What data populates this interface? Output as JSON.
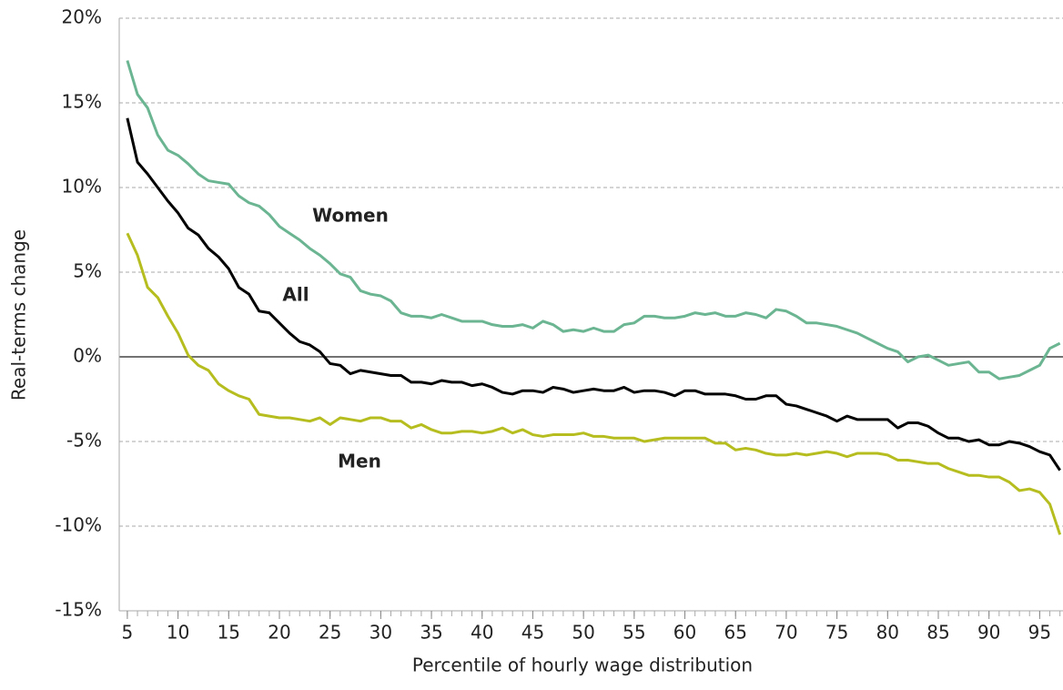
{
  "chart_data": {
    "type": "line",
    "x_label": "Percentile of hourly wage distribution",
    "y_label": "Real-terms change",
    "x": [
      5,
      6,
      7,
      8,
      9,
      10,
      11,
      12,
      13,
      14,
      15,
      16,
      17,
      18,
      19,
      20,
      21,
      22,
      23,
      24,
      25,
      26,
      27,
      28,
      29,
      30,
      31,
      32,
      33,
      34,
      35,
      36,
      37,
      38,
      39,
      40,
      41,
      42,
      43,
      44,
      45,
      46,
      47,
      48,
      49,
      50,
      51,
      52,
      53,
      54,
      55,
      56,
      57,
      58,
      59,
      60,
      61,
      62,
      63,
      64,
      65,
      66,
      67,
      68,
      69,
      70,
      71,
      72,
      73,
      74,
      75,
      76,
      77,
      78,
      79,
      80,
      81,
      82,
      83,
      84,
      85,
      86,
      87,
      88,
      89,
      90,
      91,
      92,
      93,
      94,
      95,
      96,
      97
    ],
    "series": [
      {
        "name": "Women",
        "color": "#6bb592",
        "values": [
          17.5,
          15.5,
          14.7,
          13.1,
          12.2,
          11.9,
          11.4,
          10.8,
          10.4,
          10.3,
          10.2,
          9.5,
          9.1,
          8.9,
          8.4,
          7.7,
          7.3,
          6.9,
          6.4,
          6.0,
          5.5,
          4.9,
          4.7,
          3.9,
          3.7,
          3.6,
          3.3,
          2.6,
          2.4,
          2.4,
          2.3,
          2.5,
          2.3,
          2.1,
          2.1,
          2.1,
          1.9,
          1.8,
          1.8,
          1.9,
          1.7,
          2.1,
          1.9,
          1.5,
          1.6,
          1.5,
          1.7,
          1.5,
          1.5,
          1.9,
          2.0,
          2.4,
          2.4,
          2.3,
          2.3,
          2.4,
          2.6,
          2.5,
          2.6,
          2.4,
          2.4,
          2.6,
          2.5,
          2.3,
          2.8,
          2.7,
          2.4,
          2.0,
          2.0,
          1.9,
          1.8,
          1.6,
          1.4,
          1.1,
          0.8,
          0.5,
          0.3,
          -0.3,
          0.0,
          0.1,
          -0.2,
          -0.5,
          -0.4,
          -0.3,
          -0.9,
          -0.9,
          -1.3,
          -1.2,
          -1.1,
          -0.8,
          -0.5,
          0.5,
          0.8
        ]
      },
      {
        "name": "All",
        "color": "#000000",
        "values": [
          14.1,
          11.5,
          10.8,
          10.0,
          9.2,
          8.5,
          7.6,
          7.2,
          6.4,
          5.9,
          5.2,
          4.1,
          3.7,
          2.7,
          2.6,
          2.0,
          1.4,
          0.9,
          0.7,
          0.3,
          -0.4,
          -0.5,
          -1.0,
          -0.8,
          -0.9,
          -1.0,
          -1.1,
          -1.1,
          -1.5,
          -1.5,
          -1.6,
          -1.4,
          -1.5,
          -1.5,
          -1.7,
          -1.6,
          -1.8,
          -2.1,
          -2.2,
          -2.0,
          -2.0,
          -2.1,
          -1.8,
          -1.9,
          -2.1,
          -2.0,
          -1.9,
          -2.0,
          -2.0,
          -1.8,
          -2.1,
          -2.0,
          -2.0,
          -2.1,
          -2.3,
          -2.0,
          -2.0,
          -2.2,
          -2.2,
          -2.2,
          -2.3,
          -2.5,
          -2.5,
          -2.3,
          -2.3,
          -2.8,
          -2.9,
          -3.1,
          -3.3,
          -3.5,
          -3.8,
          -3.5,
          -3.7,
          -3.7,
          -3.7,
          -3.7,
          -4.2,
          -3.9,
          -3.9,
          -4.1,
          -4.5,
          -4.8,
          -4.8,
          -5.0,
          -4.9,
          -5.2,
          -5.2,
          -5.0,
          -5.1,
          -5.3,
          -5.6,
          -5.8,
          -6.7
        ]
      },
      {
        "name": "Men",
        "color": "#b5bd1f",
        "values": [
          7.3,
          6.0,
          4.1,
          3.5,
          2.4,
          1.4,
          0.1,
          -0.5,
          -0.8,
          -1.6,
          -2.0,
          -2.3,
          -2.5,
          -3.4,
          -3.5,
          -3.6,
          -3.6,
          -3.7,
          -3.8,
          -3.6,
          -4.0,
          -3.6,
          -3.7,
          -3.8,
          -3.6,
          -3.6,
          -3.8,
          -3.8,
          -4.2,
          -4.0,
          -4.3,
          -4.5,
          -4.5,
          -4.4,
          -4.4,
          -4.5,
          -4.4,
          -4.2,
          -4.5,
          -4.3,
          -4.6,
          -4.7,
          -4.6,
          -4.6,
          -4.6,
          -4.5,
          -4.7,
          -4.7,
          -4.8,
          -4.8,
          -4.8,
          -5.0,
          -4.9,
          -4.8,
          -4.8,
          -4.8,
          -4.8,
          -4.8,
          -5.1,
          -5.1,
          -5.5,
          -5.4,
          -5.5,
          -5.7,
          -5.8,
          -5.8,
          -5.7,
          -5.8,
          -5.7,
          -5.6,
          -5.7,
          -5.9,
          -5.7,
          -5.7,
          -5.7,
          -5.8,
          -6.1,
          -6.1,
          -6.2,
          -6.3,
          -6.3,
          -6.6,
          -6.8,
          -7.0,
          -7.0,
          -7.1,
          -7.1,
          -7.4,
          -7.9,
          -7.8,
          -8.0,
          -8.7,
          -10.5
        ]
      }
    ],
    "xlim": [
      4.2,
      97.3
    ],
    "xticks": [
      5,
      10,
      15,
      20,
      25,
      30,
      35,
      40,
      45,
      50,
      55,
      60,
      65,
      70,
      75,
      80,
      85,
      90,
      95
    ],
    "ylim": [
      -15,
      20
    ],
    "yticks": [
      {
        "value": -15,
        "label": "-15%"
      },
      {
        "value": -10,
        "label": "-10%"
      },
      {
        "value": -5,
        "label": "-5%"
      },
      {
        "value": 0,
        "label": "0%"
      },
      {
        "value": 5,
        "label": "5%"
      },
      {
        "value": 10,
        "label": "10%"
      },
      {
        "value": 15,
        "label": "15%"
      },
      {
        "value": 20,
        "label": "20%"
      }
    ],
    "grid": true
  }
}
